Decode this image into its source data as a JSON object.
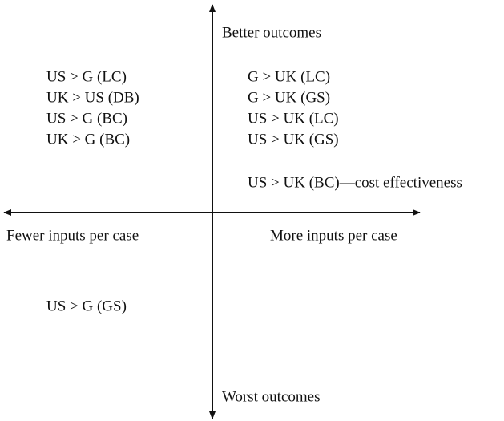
{
  "axes": {
    "top": "Better outcomes",
    "bottom": "Worst outcomes",
    "left": "Fewer inputs per case",
    "right": "More inputs per case"
  },
  "quadrants": {
    "top_left": [
      "US > G (LC)",
      "UK > US (DB)",
      "US > G (BC)",
      "UK > G (BC)"
    ],
    "top_right": [
      "G > UK (LC)",
      "G > UK (GS)",
      "US > UK (LC)",
      "US > UK (GS)"
    ],
    "top_right_note": "US > UK (BC)—cost effectiveness",
    "bottom_left": [
      "US > G (GS)"
    ]
  }
}
